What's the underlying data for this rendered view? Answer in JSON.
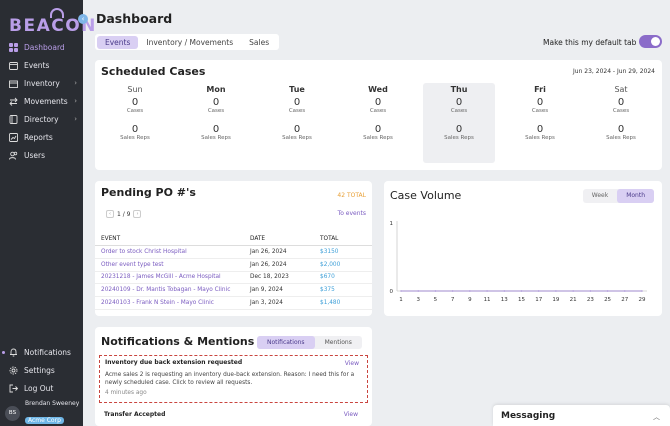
{
  "app": {
    "logo": "BEACON"
  },
  "sidebar": {
    "items": [
      {
        "label": "Dashboard",
        "icon": "grid-icon",
        "active": true
      },
      {
        "label": "Events",
        "icon": "calendar-icon"
      },
      {
        "label": "Inventory",
        "icon": "box-icon",
        "has_sub": true
      },
      {
        "label": "Movements",
        "icon": "arrows-icon",
        "has_sub": true
      },
      {
        "label": "Directory",
        "icon": "book-icon",
        "has_sub": true
      },
      {
        "label": "Reports",
        "icon": "chart-icon"
      },
      {
        "label": "Users",
        "icon": "users-icon"
      }
    ],
    "bottom_items": [
      {
        "label": "Notifications",
        "icon": "bell-icon"
      },
      {
        "label": "Settings",
        "icon": "gear-icon"
      },
      {
        "label": "Log Out",
        "icon": "logout-icon"
      }
    ],
    "user": {
      "initials": "BS",
      "name": "Brendan Sweeney",
      "org": "Acme Corp"
    }
  },
  "header": {
    "title": "Dashboard",
    "tabs": [
      "Events",
      "Inventory / Movements",
      "Sales"
    ],
    "default_label": "Make this my default tab"
  },
  "scheduled": {
    "title": "Scheduled Cases",
    "range": "Jun 23, 2024 - Jun 29, 2024",
    "case_label": "Cases",
    "rep_label": "Sales Reps",
    "days": [
      {
        "name": "Sun",
        "cases": "0",
        "reps": "0"
      },
      {
        "name": "Mon",
        "cases": "0",
        "reps": "0"
      },
      {
        "name": "Tue",
        "cases": "0",
        "reps": "0"
      },
      {
        "name": "Wed",
        "cases": "0",
        "reps": "0"
      },
      {
        "name": "Thu",
        "cases": "0",
        "reps": "0"
      },
      {
        "name": "Fri",
        "cases": "0",
        "reps": "0"
      },
      {
        "name": "Sat",
        "cases": "0",
        "reps": "0"
      }
    ]
  },
  "pending_po": {
    "title": "Pending PO #'s",
    "total": "42 TOTAL",
    "page": "1 / 9",
    "to_events": "To events",
    "columns": [
      "EVENT",
      "DATE",
      "TOTAL"
    ],
    "rows": [
      {
        "event": "Order to stock Christ Hospital",
        "date": "Jan 26, 2024",
        "total": "$3150"
      },
      {
        "event": "Other event type test",
        "date": "Jan 26, 2024",
        "total": "$2,000"
      },
      {
        "event": "20231218 - James McGill - Acme Hospital",
        "date": "Dec 18, 2023",
        "total": "$670"
      },
      {
        "event": "20240109 - Dr. Mantis Tobagan - Mayo Clinic",
        "date": "Jan 9, 2024",
        "total": "$375"
      },
      {
        "event": "20240103 - Frank N Stein - Mayo Clinic",
        "date": "Jan 3, 2024",
        "total": "$1,480"
      }
    ]
  },
  "case_volume": {
    "title": "Case Volume",
    "tabs": [
      "Week",
      "Month"
    ]
  },
  "chart_data": {
    "type": "line",
    "x": [
      1,
      3,
      5,
      7,
      9,
      11,
      13,
      15,
      17,
      19,
      21,
      23,
      25,
      27,
      29
    ],
    "series": [
      {
        "values": [
          0,
          0,
          0,
          0,
          0,
          0,
          0,
          0,
          0,
          0,
          0,
          0,
          0,
          0,
          0
        ]
      }
    ],
    "ylim": [
      0,
      1
    ],
    "yticks": [
      "0",
      "1"
    ],
    "grid": false,
    "color": "#8b6cc9"
  },
  "notifications": {
    "title": "Notifications & Mentions",
    "tabs": [
      "Notifications",
      "Mentions"
    ],
    "items": [
      {
        "title": "Inventory due back extension requested",
        "view": "View",
        "body": "Acme sales 2 is requesting an inventory due-back extension. Reason: I need this for a newly scheduled case. Click to review all requests.",
        "time": "4 minutes ago"
      },
      {
        "title": "Transfer Accepted",
        "view": "View"
      }
    ]
  },
  "messaging": {
    "title": "Messaging"
  },
  "colors": {
    "accent": "#8b6cc9",
    "accent_light": "#d9cff3",
    "sidebar_bg": "#2a2d33",
    "link": "#3d9fd8",
    "warning": "#e8a037"
  }
}
